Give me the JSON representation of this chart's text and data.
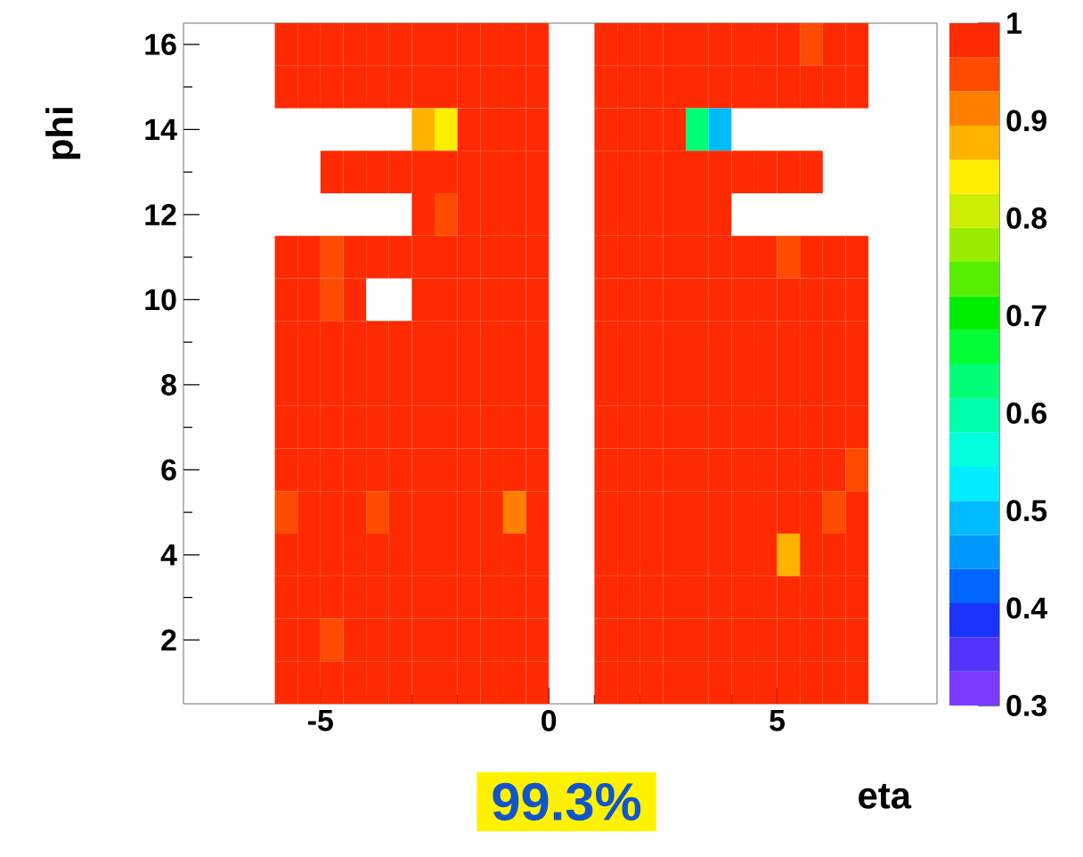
{
  "chart_data": {
    "type": "heatmap",
    "xlabel": "eta",
    "ylabel": "phi",
    "x": [
      -5.75,
      -5.25,
      -4.75,
      -4.25,
      -3.75,
      -3.25,
      -2.75,
      -2.25,
      -1.75,
      -1.25,
      -0.75,
      -0.25,
      0.25,
      0.75,
      1.25,
      1.75,
      2.25,
      2.75,
      3.25,
      3.75,
      4.25,
      4.75,
      5.25,
      5.75,
      6.25,
      6.75
    ],
    "y": [
      16,
      15,
      14,
      13,
      12,
      11,
      10,
      9,
      8,
      7,
      6,
      5,
      4,
      3,
      2,
      1
    ],
    "cells": [
      [
        1,
        1,
        1,
        1,
        1,
        1,
        1,
        1,
        1,
        1,
        1,
        1,
        null,
        null,
        1,
        1,
        1,
        1,
        1,
        1,
        1,
        1,
        1,
        0.95,
        1,
        1
      ],
      [
        1,
        1,
        1,
        1,
        1,
        1,
        1,
        1,
        1,
        1,
        1,
        1,
        null,
        null,
        1,
        1,
        1,
        1,
        1,
        1,
        1,
        1,
        1,
        1,
        1,
        1
      ],
      [
        null,
        null,
        null,
        null,
        null,
        null,
        0.88,
        0.84,
        1,
        1,
        1,
        1,
        null,
        null,
        1,
        1,
        1,
        1,
        0.62,
        0.5,
        null,
        null,
        null,
        null,
        null,
        null
      ],
      [
        null,
        null,
        1,
        1,
        1,
        1,
        1,
        1,
        1,
        1,
        1,
        1,
        null,
        null,
        1,
        1,
        1,
        1,
        1,
        1,
        1,
        1,
        1,
        1,
        null,
        null
      ],
      [
        null,
        null,
        null,
        null,
        null,
        null,
        1,
        0.95,
        1,
        1,
        1,
        1,
        null,
        null,
        1,
        1,
        1,
        1,
        1,
        1,
        null,
        null,
        null,
        null,
        null,
        null
      ],
      [
        1,
        1,
        0.95,
        1,
        1,
        1,
        1,
        1,
        1,
        1,
        1,
        1,
        null,
        null,
        1,
        1,
        1,
        1,
        1,
        1,
        1,
        1,
        0.95,
        1,
        1,
        1
      ],
      [
        1,
        1,
        0.95,
        1,
        null,
        null,
        1,
        1,
        1,
        1,
        1,
        1,
        null,
        null,
        1,
        1,
        1,
        1,
        1,
        1,
        1,
        1,
        1,
        1,
        1,
        1
      ],
      [
        1,
        1,
        1,
        1,
        1,
        1,
        1,
        1,
        1,
        1,
        1,
        1,
        null,
        null,
        1,
        1,
        1,
        1,
        1,
        1,
        1,
        1,
        1,
        1,
        1,
        1
      ],
      [
        1,
        1,
        1,
        1,
        1,
        1,
        1,
        1,
        1,
        1,
        1,
        1,
        null,
        null,
        1,
        1,
        1,
        1,
        1,
        1,
        1,
        1,
        1,
        1,
        1,
        1
      ],
      [
        1,
        1,
        1,
        1,
        1,
        1,
        1,
        1,
        1,
        1,
        1,
        1,
        null,
        null,
        1,
        1,
        1,
        1,
        1,
        1,
        1,
        1,
        1,
        1,
        1,
        1
      ],
      [
        1,
        1,
        1,
        1,
        1,
        1,
        1,
        1,
        1,
        1,
        1,
        1,
        null,
        null,
        1,
        1,
        1,
        1,
        1,
        1,
        1,
        1,
        1,
        1,
        1,
        0.95
      ],
      [
        0.95,
        1,
        1,
        1,
        0.95,
        1,
        1,
        1,
        1,
        1,
        0.91,
        1,
        null,
        null,
        1,
        1,
        1,
        1,
        1,
        1,
        1,
        1,
        1,
        1,
        0.95,
        1
      ],
      [
        1,
        1,
        1,
        1,
        1,
        1,
        1,
        1,
        1,
        1,
        1,
        1,
        null,
        null,
        1,
        1,
        1,
        1,
        1,
        1,
        1,
        1,
        0.88,
        1,
        1,
        1
      ],
      [
        1,
        1,
        1,
        1,
        1,
        1,
        1,
        1,
        1,
        1,
        1,
        1,
        null,
        null,
        1,
        1,
        1,
        1,
        1,
        1,
        1,
        1,
        1,
        1,
        1,
        1
      ],
      [
        1,
        1,
        0.95,
        1,
        1,
        1,
        1,
        1,
        1,
        1,
        1,
        1,
        null,
        null,
        1,
        1,
        1,
        1,
        1,
        1,
        1,
        1,
        1,
        1,
        1,
        1
      ],
      [
        1,
        1,
        1,
        1,
        1,
        1,
        1,
        1,
        1,
        1,
        1,
        1,
        null,
        null,
        1,
        1,
        1,
        1,
        1,
        1,
        1,
        1,
        1,
        1,
        1,
        1
      ]
    ],
    "xlim": [
      -8,
      8.5
    ],
    "ylim": [
      0.5,
      16.5
    ],
    "xticks": [
      -5,
      0,
      5
    ],
    "yticks": [
      2,
      4,
      6,
      8,
      10,
      12,
      14,
      16
    ],
    "clim": [
      0.3,
      1
    ],
    "cticks": [
      0.3,
      0.4,
      0.5,
      0.6,
      0.7,
      0.8,
      0.9,
      1
    ],
    "annotations": [
      "99.3%"
    ]
  }
}
